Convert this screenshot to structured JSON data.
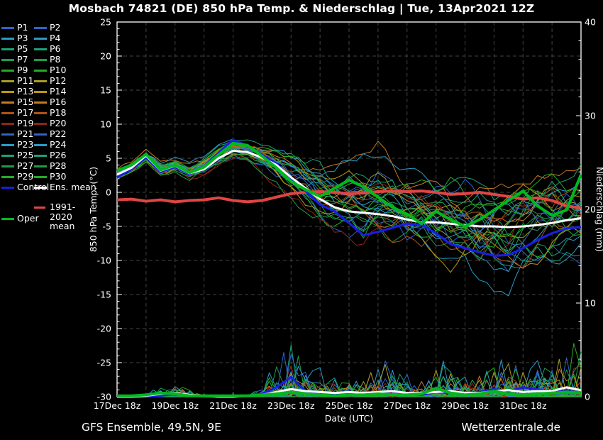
{
  "title": "Mosbach 74821 (DE)  850 hPa Temp. & Niederschlag | Tue, 13Apr2021 12Z",
  "footer": {
    "left": "GFS Ensemble, 49.5N, 9E",
    "right": "Wetterzentrale.de"
  },
  "colors": {
    "background": "#000000",
    "axis": "#ffffff",
    "grid": "#45453c",
    "text": "#ffffff",
    "control": "#1a1ee0",
    "ens_mean": "#ffffff",
    "clim_mean": "#e04545",
    "oper": "#00b820",
    "member_palette": [
      "#2e64c8",
      "#2b9ac8",
      "#1aa378",
      "#1d9c4a",
      "#23ad23",
      "#a89f25",
      "#bd9612",
      "#c87a1e",
      "#b05415",
      "#8f2418"
    ]
  },
  "legend": {
    "members": [
      {
        "label": "P1"
      },
      {
        "label": "P2"
      },
      {
        "label": "P3"
      },
      {
        "label": "P4"
      },
      {
        "label": "P5"
      },
      {
        "label": "P6"
      },
      {
        "label": "P7"
      },
      {
        "label": "P8"
      },
      {
        "label": "P9"
      },
      {
        "label": "P10"
      },
      {
        "label": "P11"
      },
      {
        "label": "P12"
      },
      {
        "label": "P13"
      },
      {
        "label": "P14"
      },
      {
        "label": "P15"
      },
      {
        "label": "P16"
      },
      {
        "label": "P17"
      },
      {
        "label": "P18"
      },
      {
        "label": "P19"
      },
      {
        "label": "P20"
      },
      {
        "label": "P21"
      },
      {
        "label": "P22"
      },
      {
        "label": "P23"
      },
      {
        "label": "P24"
      },
      {
        "label": "P25"
      },
      {
        "label": "P26"
      },
      {
        "label": "P27"
      },
      {
        "label": "P28"
      },
      {
        "label": "P29"
      },
      {
        "label": "P30"
      }
    ],
    "control": {
      "label": "Control"
    },
    "ens_mean": {
      "label": "Ens. mean"
    },
    "clim_mean": {
      "label": "1991-2020 mean"
    },
    "oper": {
      "label": "Oper"
    }
  },
  "chart_data": {
    "type": "line",
    "title": "Mosbach 74821 (DE)  850 hPa Temp. & Niederschlag | Tue, 13Apr2021 12Z",
    "xlabel": "Date (UTC)",
    "ylabel_left": "850 hPa Temp. (°C)",
    "ylabel_right": "Niederschlag (mm)",
    "ylim_left": [
      -30,
      25
    ],
    "ylim_right": [
      0,
      40
    ],
    "grid": {
      "h_step_degC": 5,
      "v_step_days": 1,
      "style": "dashed"
    },
    "x_total_days": 16,
    "x_tick_labels": [
      "17Dec 18z",
      "19Dec 18z",
      "21Dec 18z",
      "23Dec 18z",
      "25Dec 18z",
      "27Dec 18z",
      "29Dec 18z",
      "31Dec 18z"
    ],
    "x_tick_positions_days": [
      0,
      2,
      4,
      6,
      8,
      10,
      12,
      14
    ],
    "y_ticks_left": [
      "25",
      "20",
      "15",
      "10",
      "5",
      "0",
      "-5",
      "-10",
      "-15",
      "-20",
      "-25",
      "-30"
    ],
    "y_ticks_right": [
      "40",
      "30",
      "20",
      "10",
      "0"
    ],
    "x_days": [
      0,
      0.5,
      1,
      1.5,
      2,
      2.5,
      3,
      3.5,
      4,
      4.5,
      5,
      5.5,
      6,
      6.5,
      7,
      7.5,
      8,
      8.5,
      9,
      9.5,
      10,
      10.5,
      11,
      11.5,
      12,
      12.5,
      13,
      13.5,
      14,
      14.5,
      15,
      15.5,
      16
    ],
    "series": [
      {
        "name": "Ens. mean",
        "axis": "temp",
        "width": 3,
        "values": [
          2.6,
          3.6,
          5.4,
          3.2,
          3.9,
          2.8,
          3.4,
          5.0,
          6.1,
          5.9,
          5.1,
          4.0,
          2.2,
          0.6,
          -1.0,
          -2.2,
          -2.8,
          -3.0,
          -3.2,
          -3.5,
          -4.0,
          -4.4,
          -4.4,
          -4.6,
          -4.8,
          -5.0,
          -5.0,
          -5.1,
          -5.0,
          -4.8,
          -4.5,
          -4.1,
          -3.8
        ]
      },
      {
        "name": "Control",
        "axis": "temp",
        "width": 3.2,
        "values": [
          2.2,
          3.4,
          5.1,
          3.0,
          3.7,
          2.7,
          3.8,
          5.8,
          7.7,
          6.8,
          5.5,
          4.2,
          2.0,
          0.2,
          -1.8,
          -2.8,
          -4.5,
          -6.3,
          -5.8,
          -5.2,
          -4.6,
          -4.8,
          -6.0,
          -7.6,
          -8.2,
          -8.8,
          -9.3,
          -9.2,
          -8.2,
          -7.0,
          -6.0,
          -5.3,
          -5.1
        ]
      },
      {
        "name": "Oper",
        "axis": "temp",
        "width": 4,
        "values": [
          3.2,
          4.0,
          5.6,
          3.3,
          4.0,
          2.9,
          3.7,
          5.5,
          7.2,
          6.9,
          5.3,
          3.6,
          1.6,
          0.4,
          -0.6,
          0.6,
          1.8,
          0.8,
          -0.7,
          -2.2,
          -3.2,
          -4.6,
          -2.8,
          -4.0,
          -5.0,
          -4.0,
          -2.6,
          -1.2,
          0.2,
          -2.0,
          -3.4,
          -2.6,
          2.6
        ]
      },
      {
        "name": "1991-2020 mean",
        "axis": "temp",
        "width": 4,
        "values": [
          -1.1,
          -1.0,
          -1.3,
          -1.1,
          -1.4,
          -1.2,
          -1.1,
          -0.8,
          -1.2,
          -1.4,
          -1.2,
          -0.7,
          -0.2,
          0.0,
          0.1,
          0.0,
          -0.2,
          -0.1,
          0.1,
          0.2,
          0.1,
          0.2,
          0.0,
          -0.3,
          -0.2,
          0.0,
          -0.3,
          -0.6,
          -1.0,
          -0.8,
          -1.2,
          -2.0,
          -2.3
        ]
      }
    ],
    "precip_series": [
      {
        "name": "Ens. mean precip",
        "axis": "precip",
        "width": 3,
        "values": [
          0,
          0,
          0.1,
          0.3,
          0.4,
          0.2,
          0.1,
          0,
          0,
          0.1,
          0.2,
          0.5,
          0.8,
          0.6,
          0.5,
          0.4,
          0.5,
          0.4,
          0.5,
          0.6,
          0.4,
          0.4,
          0.5,
          0.6,
          0.4,
          0.4,
          0.6,
          0.7,
          0.5,
          0.6,
          0.6,
          1.0,
          0.7
        ]
      },
      {
        "name": "Control precip",
        "axis": "precip",
        "width": 3.2,
        "values": [
          0,
          0,
          0,
          0.1,
          0.3,
          0.1,
          0,
          0,
          0,
          0.1,
          0.3,
          1.0,
          2.1,
          0.6,
          0.2,
          0.3,
          0.5,
          0.3,
          0.4,
          0.6,
          0.3,
          0.2,
          0.5,
          0.4,
          0.3,
          0.5,
          0.8,
          0.6,
          1.0,
          0.8,
          0.5,
          0.6,
          0.4
        ]
      },
      {
        "name": "Oper precip",
        "axis": "precip",
        "width": 4,
        "values": [
          0.1,
          0.1,
          0.2,
          0.4,
          0.3,
          0.1,
          0.1,
          0.1,
          0.1,
          0.1,
          0.2,
          0.3,
          0.5,
          0.3,
          0.2,
          0.1,
          0.2,
          0.2,
          0.3,
          0.2,
          0.2,
          0.3,
          0.9,
          0.4,
          0.2,
          0.3,
          0.6,
          0.3,
          0.2,
          0.3,
          0.4,
          0.5,
          0.4
        ]
      }
    ],
    "ensemble_envelope": {
      "note": "30 GFS ensemble member traces span this min/max band; members synthesized within it",
      "temp_min": [
        1.8,
        2.6,
        4.2,
        2.2,
        2.8,
        1.8,
        2.4,
        3.6,
        4.6,
        4.0,
        2.6,
        1.0,
        -1.0,
        -3.0,
        -5.0,
        -6.0,
        -6.5,
        -7.5,
        -8.0,
        -8.5,
        -9.5,
        -10.5,
        -11.5,
        -13.0,
        -14.0,
        -15.5,
        -16.0,
        -15.0,
        -14.0,
        -13.0,
        -12.5,
        -12.0,
        -11.0
      ],
      "temp_max": [
        3.6,
        4.6,
        6.2,
        4.6,
        5.0,
        4.2,
        5.2,
        6.8,
        7.8,
        7.6,
        7.0,
        6.2,
        5.5,
        5.0,
        4.5,
        4.0,
        4.5,
        5.5,
        7.3,
        5.5,
        4.0,
        3.6,
        3.2,
        3.4,
        3.0,
        3.2,
        3.4,
        3.0,
        3.6,
        4.0,
        4.2,
        4.4,
        4.5
      ],
      "precip_max": [
        0,
        0,
        0.2,
        1.2,
        2.0,
        0.8,
        0.2,
        0,
        0,
        0.3,
        0.8,
        4.5,
        6.2,
        4.2,
        4.0,
        2.0,
        2.8,
        2.2,
        3.3,
        4.5,
        2.6,
        2.0,
        3.3,
        4.5,
        3.0,
        2.6,
        4.0,
        5.5,
        3.2,
        4.2,
        5.0,
        9.5,
        5.0
      ]
    }
  },
  "ensemble_synthesis": {
    "seed": 11,
    "member_count": 30,
    "fine_step_days": 0.25
  }
}
